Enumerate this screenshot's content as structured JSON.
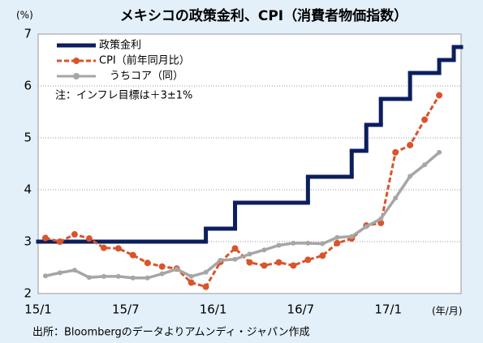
{
  "chart_data": {
    "type": "line",
    "title": "メキシコの政策金利、CPI（消費者物価指数）",
    "y_unit": "(%)",
    "x_unit": "(年/月)",
    "annotation": "注：インフレ目標は＋3±1%",
    "source": "出所：Bloombergのデータよりアムンディ・ジャパン作成",
    "categories": [
      "15/1",
      null,
      null,
      null,
      null,
      null,
      "15/7",
      null,
      null,
      null,
      null,
      null,
      "16/1",
      null,
      null,
      null,
      null,
      null,
      "16/7",
      null,
      null,
      null,
      null,
      null,
      "17/1",
      null,
      null,
      null,
      null
    ],
    "series": [
      {
        "name": "政策金利",
        "color": "#0b1f5e",
        "style": "step",
        "values": [
          3,
          3,
          3,
          3,
          3,
          3,
          3,
          3,
          3,
          3,
          3,
          3.25,
          3.25,
          3.75,
          3.75,
          3.75,
          3.75,
          3.75,
          4.25,
          4.25,
          4.25,
          4.75,
          5.25,
          5.75,
          5.75,
          6.25,
          6.25,
          6.5,
          6.75
        ]
      },
      {
        "name": "CPI（前年同月比）",
        "color": "#d9542b",
        "style": "dashed",
        "values": [
          3.07,
          3.0,
          3.14,
          3.06,
          2.88,
          2.87,
          2.74,
          2.59,
          2.52,
          2.48,
          2.21,
          2.13,
          2.61,
          2.87,
          2.6,
          2.54,
          2.6,
          2.54,
          2.65,
          2.73,
          2.97,
          3.06,
          3.31,
          3.36,
          4.72,
          4.86,
          5.35,
          5.82,
          null
        ]
      },
      {
        "name": "うちコア（同）",
        "color": "#a6a6a6",
        "style": "solid",
        "values": [
          2.34,
          2.4,
          2.45,
          2.31,
          2.33,
          2.33,
          2.3,
          2.3,
          2.38,
          2.47,
          2.33,
          2.41,
          2.64,
          2.66,
          2.76,
          2.84,
          2.93,
          2.97,
          2.97,
          2.96,
          3.08,
          3.1,
          3.29,
          3.44,
          3.84,
          4.26,
          4.48,
          4.72,
          null
        ]
      }
    ],
    "ylim": [
      2,
      7
    ],
    "yticks": [
      2,
      3,
      4,
      5,
      6,
      7
    ],
    "grid": true
  }
}
